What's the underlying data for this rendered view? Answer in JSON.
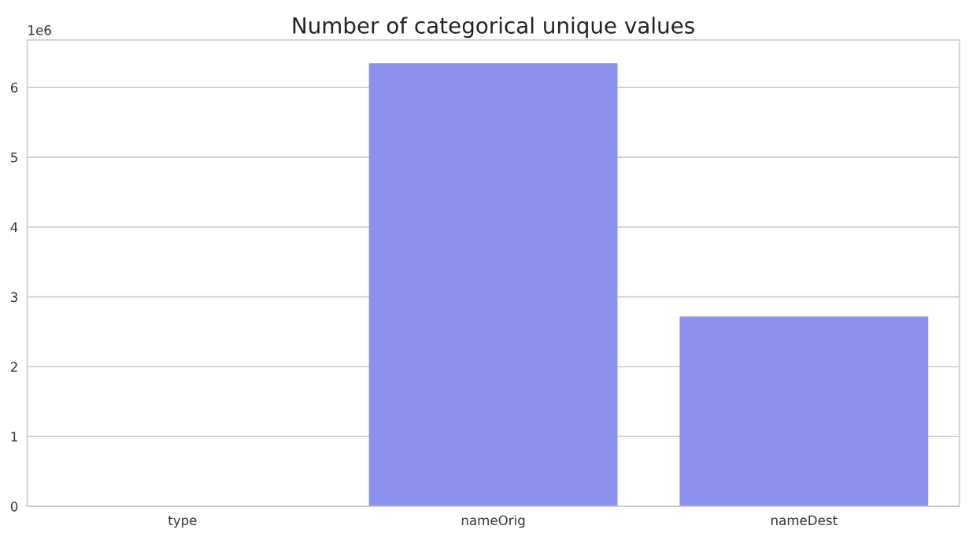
{
  "chart_data": {
    "type": "bar",
    "title": "Number of categorical unique values",
    "categories": [
      "type",
      "nameOrig",
      "nameDest"
    ],
    "values": [
      0,
      6.35,
      2.72
    ],
    "color": "#8c90ee",
    "ylim": [
      0,
      6.68
    ],
    "yticks": [
      0,
      1,
      2,
      3,
      4,
      5,
      6
    ],
    "annotations": [
      "1e6"
    ],
    "grid": "y"
  }
}
